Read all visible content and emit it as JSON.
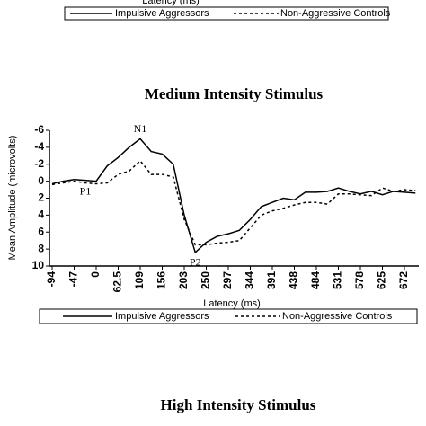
{
  "chart_data": {
    "type": "line",
    "title": "Medium Intensity Stimulus",
    "x_label": "Latency (ms)",
    "y_label": "Mean Amplitude (microvolts)",
    "categories": [
      "-94",
      null,
      "-47",
      null,
      "0",
      null,
      "62.5",
      null,
      "109",
      null,
      "156",
      null,
      "203",
      null,
      "250",
      null,
      "297",
      null,
      "344",
      null,
      "391",
      null,
      "438",
      null,
      "484",
      null,
      "531",
      null,
      "578",
      null,
      "625",
      null,
      "672",
      null
    ],
    "series": [
      {
        "name": "Impulsive Aggressors",
        "color": "#000000",
        "dash": "solid",
        "values": [
          0.3,
          0,
          -0.2,
          -0.1,
          0,
          -1.8,
          -2.8,
          -4,
          -5,
          -3.5,
          -3.2,
          -2,
          4,
          8.4,
          7.2,
          6.5,
          6.2,
          5.8,
          4.5,
          3,
          2.5,
          2,
          2.2,
          1.3,
          1.3,
          1.2,
          0.8,
          1.2,
          1.5,
          1.2,
          1.6,
          1.2,
          1.3,
          1.4
        ]
      },
      {
        "name": "Non-Aggressive Controls",
        "color": "#000000",
        "dash": "dashed",
        "values": [
          0.4,
          0.2,
          0,
          0.2,
          0.3,
          0.2,
          -0.8,
          -1.2,
          -2.4,
          -0.8,
          -0.8,
          -0.5,
          4.5,
          7.5,
          7.5,
          7.3,
          7.2,
          7,
          5.5,
          4,
          3.5,
          3.2,
          2.8,
          2.5,
          2.5,
          2.7,
          1.5,
          1.5,
          1.6,
          1.7,
          0.8,
          1.2,
          1,
          1.1
        ]
      }
    ],
    "ylim": [
      -6,
      10
    ],
    "yticks": [
      -6,
      -4,
      -2,
      0,
      2,
      4,
      6,
      8,
      10
    ],
    "y_inverted": true,
    "annotations": [
      {
        "text": "N1",
        "index": 8
      },
      {
        "text": "P1",
        "index": 4
      },
      {
        "text": "P2",
        "index": 13
      }
    ],
    "next_title": "High Intensity Stimulus"
  }
}
